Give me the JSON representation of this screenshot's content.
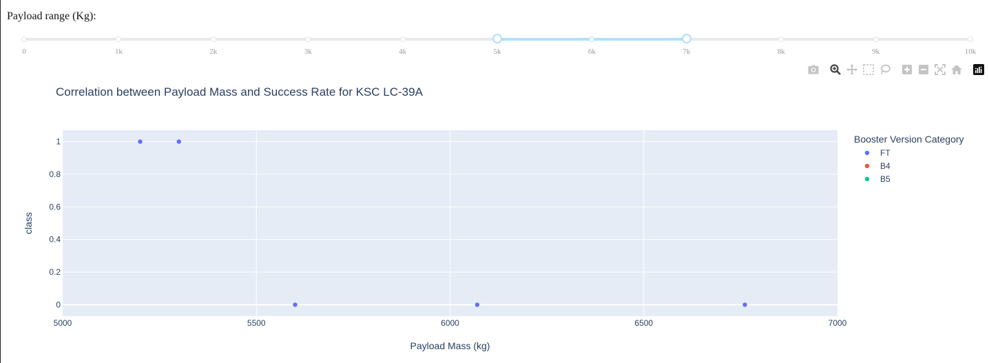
{
  "slider": {
    "label": "Payload range (Kg):",
    "min": 0,
    "max": 10000,
    "marks": [
      "0",
      "1k",
      "2k",
      "3k",
      "4k",
      "5k",
      "6k",
      "7k",
      "8k",
      "9k",
      "10k"
    ],
    "value": [
      5000,
      7000
    ]
  },
  "modebar": {
    "icons": [
      "camera-icon",
      "zoom-icon",
      "pan-icon",
      "box-select-icon",
      "lasso-select-icon",
      "zoom-in-icon",
      "zoom-out-icon",
      "autoscale-icon",
      "reset-axes-icon",
      "plotly-logo-icon"
    ]
  },
  "chart_data": {
    "type": "scatter",
    "title": "Correlation between Payload Mass and Success Rate for KSC LC-39A",
    "xlabel": "Payload Mass (kg)",
    "ylabel": "class",
    "xlim": [
      5000,
      7000
    ],
    "ylim": [
      -0.07,
      1.07
    ],
    "x_ticks": [
      5000,
      5500,
      6000,
      6500,
      7000
    ],
    "y_ticks": [
      0,
      0.2,
      0.4,
      0.6,
      0.8,
      1
    ],
    "x_tick_labels": [
      "5000",
      "5500",
      "6000",
      "6500",
      "7000"
    ],
    "y_tick_labels": [
      "0",
      "0.2",
      "0.4",
      "0.6",
      "0.8",
      "1"
    ],
    "grid": true,
    "legend": {
      "title": "Booster Version Category",
      "placement": "right"
    },
    "series": [
      {
        "name": "FT",
        "color": "#636efa",
        "points": [
          [
            5200,
            1
          ],
          [
            5300,
            1
          ],
          [
            5600,
            0
          ],
          [
            6070,
            0
          ],
          [
            6761,
            0
          ]
        ]
      },
      {
        "name": "B4",
        "color": "#ef553b",
        "points": []
      },
      {
        "name": "B5",
        "color": "#00cc96",
        "points": []
      }
    ],
    "colors": {
      "plot_bg": "#e5ecf6",
      "grid": "#ffffff",
      "text": "#2a3f5f",
      "tick_text": "#2a3f5f"
    }
  }
}
